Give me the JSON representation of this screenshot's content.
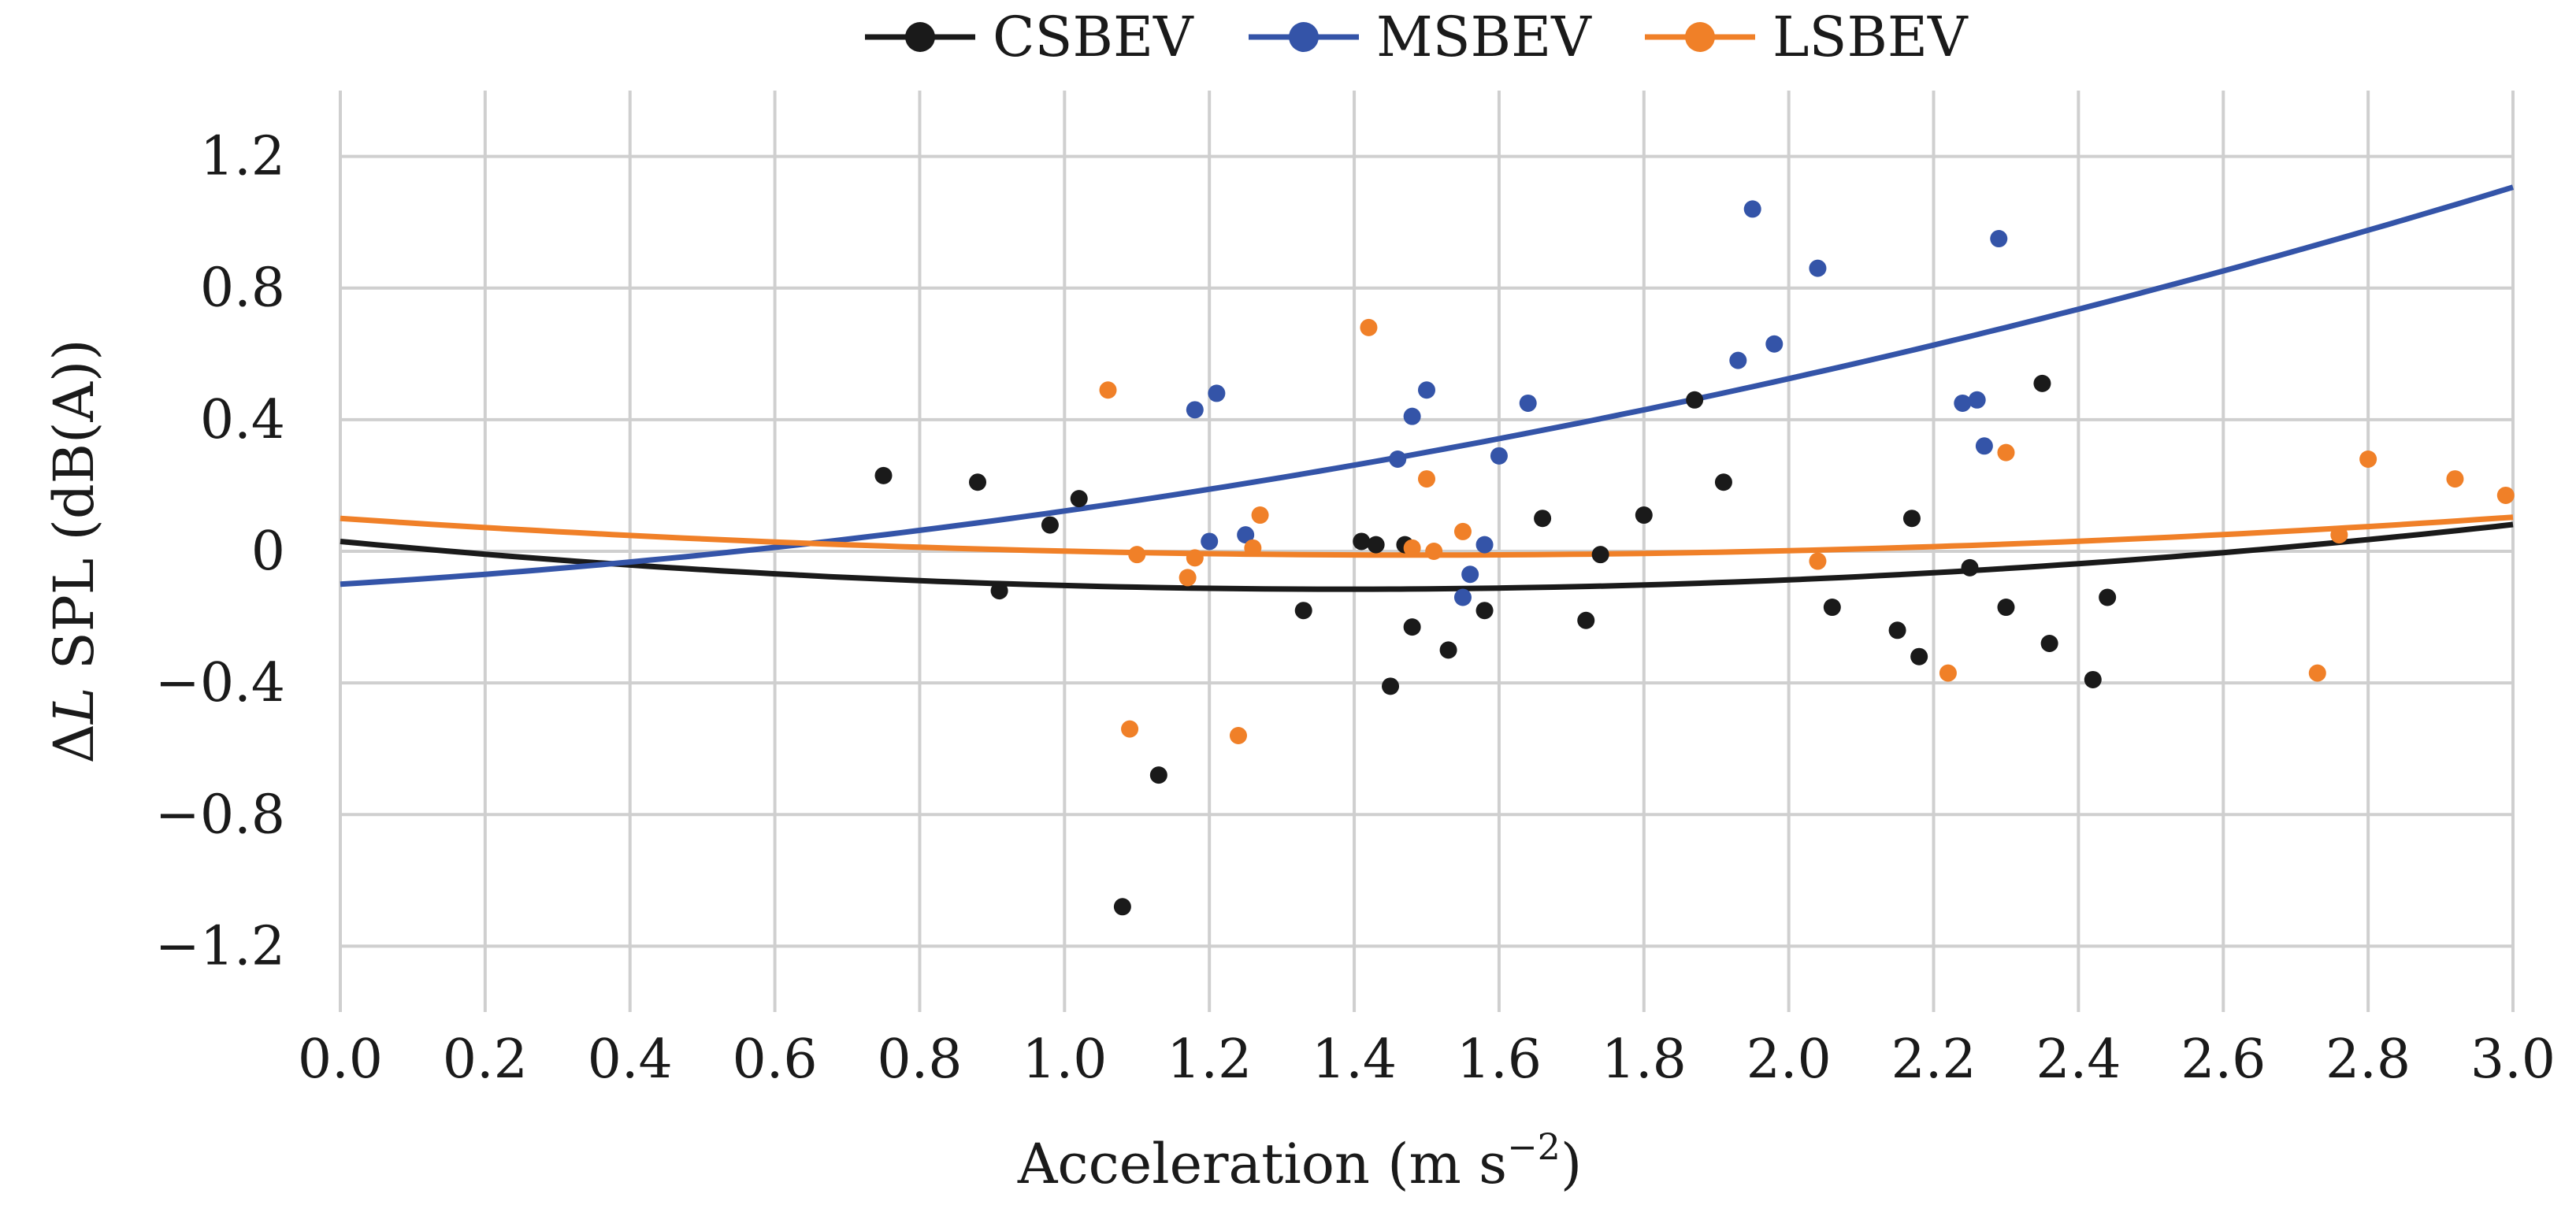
{
  "chart_data": {
    "type": "scatter",
    "title": "",
    "xlabel": "Acceleration (m s",
    "xlabel_sup": "−2",
    "xlabel_end": ")",
    "ylabel_prefix": "Δ",
    "ylabel_var": "L",
    "ylabel_rest": " SPL (dB(A))",
    "xlim": [
      0.0,
      3.0
    ],
    "ylim": [
      -1.4,
      1.4
    ],
    "grid": true,
    "legend_position": "top-center",
    "x_ticks": [
      {
        "value": 0.0,
        "label": "0.0"
      },
      {
        "value": 0.2,
        "label": "0.2"
      },
      {
        "value": 0.4,
        "label": "0.4"
      },
      {
        "value": 0.6,
        "label": "0.6"
      },
      {
        "value": 0.8,
        "label": "0.8"
      },
      {
        "value": 1.0,
        "label": "1.0"
      },
      {
        "value": 1.2,
        "label": "1.2"
      },
      {
        "value": 1.4,
        "label": "1.4"
      },
      {
        "value": 1.6,
        "label": "1.6"
      },
      {
        "value": 1.8,
        "label": "1.8"
      },
      {
        "value": 2.0,
        "label": "2.0"
      },
      {
        "value": 2.2,
        "label": "2.2"
      },
      {
        "value": 2.4,
        "label": "2.4"
      },
      {
        "value": 2.6,
        "label": "2.6"
      },
      {
        "value": 2.8,
        "label": "2.8"
      },
      {
        "value": 3.0,
        "label": "3.0"
      }
    ],
    "y_ticks": [
      {
        "value": 1.2,
        "label": "1.2"
      },
      {
        "value": 0.8,
        "label": "0.8"
      },
      {
        "value": 0.4,
        "label": "0.4"
      },
      {
        "value": 0.0,
        "label": "0"
      },
      {
        "value": -0.4,
        "label": "−0.4"
      },
      {
        "value": -0.8,
        "label": "−0.8"
      },
      {
        "value": -1.2,
        "label": "−1.2"
      }
    ],
    "series": [
      {
        "name": "CSBEV",
        "color": "#1a1a1a",
        "fit": {
          "type": "quadratic",
          "a": 0.0755,
          "b": -0.2094,
          "c": 0.03
        },
        "points": [
          [
            0.75,
            0.23
          ],
          [
            0.88,
            0.21
          ],
          [
            0.91,
            -0.12
          ],
          [
            0.98,
            0.08
          ],
          [
            1.02,
            0.16
          ],
          [
            1.08,
            -1.08
          ],
          [
            1.13,
            -0.68
          ],
          [
            1.33,
            -0.18
          ],
          [
            1.41,
            0.03
          ],
          [
            1.43,
            0.02
          ],
          [
            1.45,
            -0.41
          ],
          [
            1.47,
            0.02
          ],
          [
            1.48,
            -0.23
          ],
          [
            1.53,
            -0.3
          ],
          [
            1.58,
            -0.18
          ],
          [
            1.66,
            0.1
          ],
          [
            1.72,
            -0.21
          ],
          [
            1.74,
            -0.01
          ],
          [
            1.8,
            0.11
          ],
          [
            1.87,
            0.46
          ],
          [
            1.91,
            0.21
          ],
          [
            2.06,
            -0.17
          ],
          [
            2.15,
            -0.24
          ],
          [
            2.17,
            0.1
          ],
          [
            2.18,
            -0.32
          ],
          [
            2.25,
            -0.05
          ],
          [
            2.3,
            -0.17
          ],
          [
            2.35,
            0.51
          ],
          [
            2.36,
            -0.28
          ],
          [
            2.42,
            -0.39
          ],
          [
            2.44,
            -0.14
          ]
        ]
      },
      {
        "name": "MSBEV",
        "color": "#3454a8",
        "fit": {
          "type": "quadratic",
          "a": 0.0898,
          "b": 0.1327,
          "c": -0.1
        },
        "points": [
          [
            1.18,
            0.43
          ],
          [
            1.2,
            0.03
          ],
          [
            1.21,
            0.48
          ],
          [
            1.25,
            0.05
          ],
          [
            1.46,
            0.28
          ],
          [
            1.48,
            0.41
          ],
          [
            1.5,
            0.49
          ],
          [
            1.55,
            -0.14
          ],
          [
            1.56,
            -0.07
          ],
          [
            1.58,
            0.02
          ],
          [
            1.6,
            0.29
          ],
          [
            1.64,
            0.45
          ],
          [
            1.93,
            0.58
          ],
          [
            1.95,
            1.04
          ],
          [
            1.98,
            0.63
          ],
          [
            2.04,
            0.86
          ],
          [
            2.24,
            0.45
          ],
          [
            2.26,
            0.46
          ],
          [
            2.27,
            0.32
          ],
          [
            2.29,
            0.95
          ]
        ]
      },
      {
        "name": "LSBEV",
        "color": "#f08028",
        "fit": {
          "type": "quadratic",
          "a": 0.0503,
          "b": -0.1497,
          "c": 0.1
        },
        "points": [
          [
            1.06,
            0.49
          ],
          [
            1.09,
            -0.54
          ],
          [
            1.1,
            -0.01
          ],
          [
            1.17,
            -0.08
          ],
          [
            1.18,
            -0.02
          ],
          [
            1.24,
            -0.56
          ],
          [
            1.26,
            0.01
          ],
          [
            1.27,
            0.11
          ],
          [
            1.42,
            0.68
          ],
          [
            1.48,
            0.01
          ],
          [
            1.5,
            0.22
          ],
          [
            1.51,
            0.0
          ],
          [
            1.55,
            0.06
          ],
          [
            2.04,
            -0.03
          ],
          [
            2.22,
            -0.37
          ],
          [
            2.3,
            0.3
          ],
          [
            2.73,
            -0.37
          ],
          [
            2.76,
            0.05
          ],
          [
            2.8,
            0.28
          ],
          [
            2.92,
            0.22
          ],
          [
            2.99,
            0.17
          ]
        ]
      }
    ]
  }
}
